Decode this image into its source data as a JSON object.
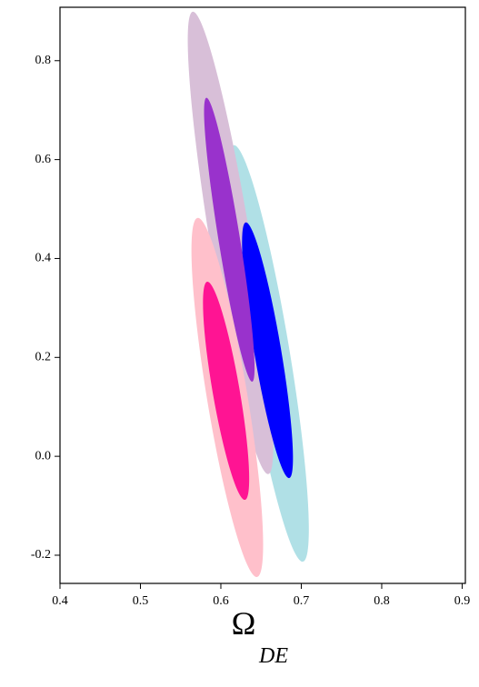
{
  "chart_data": {
    "type": "contour",
    "x_label": "Ω",
    "x_label_subscript": "DE",
    "xlim": [
      0.4,
      0.904
    ],
    "ylim": [
      -0.257,
      0.908
    ],
    "xticks": [
      0.4,
      0.5,
      0.6,
      0.7,
      0.8,
      0.9
    ],
    "yticks": [
      -0.2,
      {
        "value": 0,
        "label": "0.0"
      },
      0.2,
      0.4,
      0.6,
      0.8
    ],
    "regions": [
      {
        "color": "#b0e0e6",
        "top": [
          0.616,
          0.629
        ],
        "bottom": [
          0.702,
          -0.213
        ],
        "width": 0.054
      },
      {
        "color": "#d8bfd8",
        "top": [
          0.565,
          0.899
        ],
        "bottom": [
          0.659,
          -0.036
        ],
        "width": 0.051
      },
      {
        "color": "#0000ff",
        "top": [
          0.631,
          0.473
        ],
        "bottom": [
          0.685,
          -0.044
        ],
        "width": 0.034
      },
      {
        "color": "#9932cc",
        "top": [
          0.582,
          0.725
        ],
        "bottom": [
          0.639,
          0.151
        ],
        "width": 0.027
      },
      {
        "color": "#ffc0cb",
        "top": [
          0.571,
          0.482
        ],
        "bottom": [
          0.645,
          -0.244
        ],
        "width": 0.051
      },
      {
        "color": "#ff1493",
        "top": [
          0.583,
          0.353
        ],
        "bottom": [
          0.63,
          -0.088
        ],
        "width": 0.034
      }
    ]
  }
}
